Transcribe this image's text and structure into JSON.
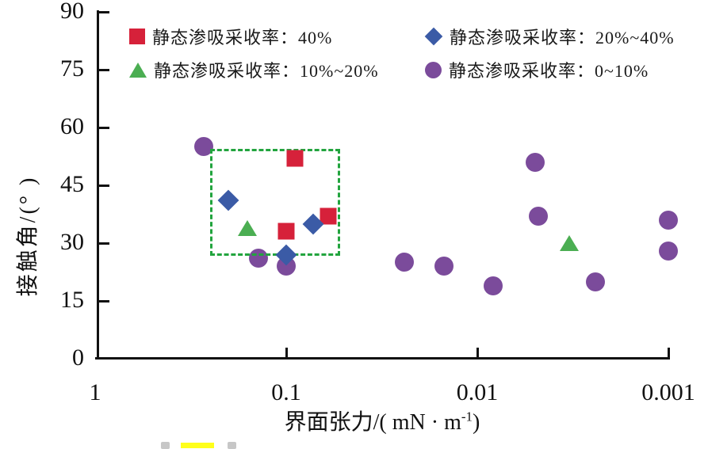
{
  "colors": {
    "axis": "#111111",
    "series_40": "#d6213a",
    "series_20_40": "#3b5ba6",
    "series_10_20": "#4bae52",
    "series_0_10": "#7b4b9b",
    "highlight_box": "#22a43e",
    "caption_highlight": "#ffff1a"
  },
  "legend": {
    "items": [
      {
        "label": "静态渗吸采收率：40%",
        "marker": "square",
        "color": "#d6213a"
      },
      {
        "label": "静态渗吸采收率：20%~40%",
        "marker": "diamond",
        "color": "#3b5ba6"
      },
      {
        "label": "静态渗吸采收率：10%~20%",
        "marker": "triangle",
        "color": "#4bae52"
      },
      {
        "label": "静态渗吸采收率：0~10%",
        "marker": "circle",
        "color": "#7b4b9b"
      }
    ]
  },
  "axes": {
    "y": {
      "label": "接触角/(° )",
      "ticks": [
        0,
        15,
        30,
        45,
        60,
        75,
        90
      ]
    },
    "x": {
      "label_prefix": "界面张力/( mN · m",
      "label_sup": "-1",
      "label_suffix": ")",
      "tick_labels": [
        "1",
        "0.1",
        "0.01",
        "0.001"
      ]
    }
  },
  "chart_data": {
    "type": "scatter",
    "title": "",
    "xlabel": "界面张力/(mN·m⁻¹)",
    "ylabel": "接触角/(°)",
    "x_axis": {
      "scale": "log",
      "direction": "reversed",
      "range": [
        1,
        0.001
      ],
      "ticks": [
        1,
        0.1,
        0.01,
        0.001
      ]
    },
    "y_axis": {
      "scale": "linear",
      "range": [
        0,
        90
      ],
      "ticks": [
        0,
        15,
        30,
        45,
        60,
        75,
        90
      ],
      "grid": false
    },
    "legend_position": "top-inside",
    "series": [
      {
        "name": "静态渗吸采收率：0~10%",
        "marker": "circle",
        "color": "#7b4b9b",
        "points": [
          {
            "x": 0.27,
            "y": 55
          },
          {
            "x": 0.14,
            "y": 26
          },
          {
            "x": 0.1,
            "y": 24
          },
          {
            "x": 0.024,
            "y": 25
          },
          {
            "x": 0.015,
            "y": 24
          },
          {
            "x": 0.0083,
            "y": 19
          },
          {
            "x": 0.005,
            "y": 51
          },
          {
            "x": 0.0048,
            "y": 37
          },
          {
            "x": 0.0024,
            "y": 20
          },
          {
            "x": 0.001,
            "y": 36
          },
          {
            "x": 0.001,
            "y": 28
          }
        ]
      },
      {
        "name": "静态渗吸采收率：10%~20%",
        "marker": "triangle",
        "color": "#4bae52",
        "points": [
          {
            "x": 0.16,
            "y": 34
          },
          {
            "x": 0.0033,
            "y": 30
          }
        ]
      },
      {
        "name": "静态渗吸采收率：40%",
        "marker": "square",
        "color": "#d6213a",
        "points": [
          {
            "x": 0.09,
            "y": 52
          },
          {
            "x": 0.1,
            "y": 33
          },
          {
            "x": 0.06,
            "y": 37
          }
        ]
      },
      {
        "name": "静态渗吸采收率：20%~40%",
        "marker": "diamond",
        "color": "#3b5ba6",
        "points": [
          {
            "x": 0.2,
            "y": 41
          },
          {
            "x": 0.072,
            "y": 35
          },
          {
            "x": 0.1,
            "y": 27
          }
        ]
      }
    ],
    "highlight_box": {
      "x_from": 0.25,
      "x_to": 0.052,
      "y_from": 54.5,
      "y_to": 26.7,
      "style": "dashed",
      "color": "#22a43e"
    }
  }
}
